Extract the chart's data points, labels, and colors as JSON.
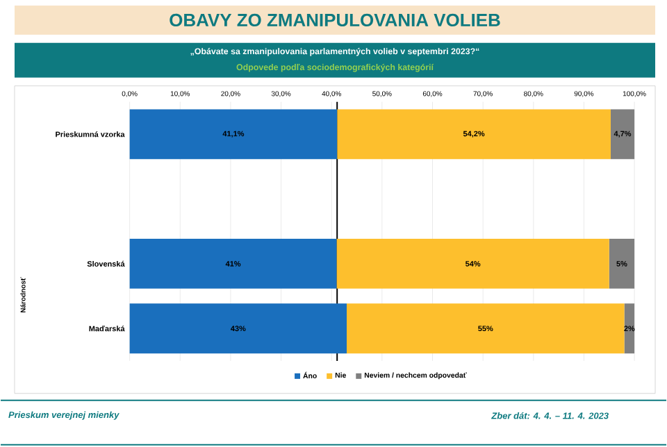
{
  "chart_data": {
    "type": "bar",
    "orientation": "horizontal",
    "stacked": true,
    "title": "OBAVY ZO ZMANIPULOVANIA VOLIEB",
    "subtitle": "„Obávate sa zmanipulovania parlamentných volieb v septembri 2023?“",
    "categories": [
      "Prieskumná vzorka",
      null,
      "Slovenská",
      "Maďarská"
    ],
    "series": [
      {
        "name": "Áno",
        "color": "#1a6fbd",
        "values": [
          41.1,
          null,
          41,
          43
        ],
        "value_labels": [
          "41,1%",
          null,
          "41%",
          "43%"
        ]
      },
      {
        "name": "Nie",
        "color": "#fdbf2d",
        "values": [
          54.2,
          null,
          54,
          55
        ],
        "value_labels": [
          "54,2%",
          null,
          "54%",
          "55%"
        ]
      },
      {
        "name": "Neviem / nechcem odpovedať",
        "color": "#7f7f7f",
        "values": [
          4.7,
          null,
          5,
          2
        ],
        "value_labels": [
          "4,7%",
          null,
          "5%",
          "2%"
        ]
      }
    ],
    "xlim": [
      0,
      100
    ],
    "xticks": [
      {
        "value": 0,
        "label": "0,0%"
      },
      {
        "value": 10,
        "label": "10,0%"
      },
      {
        "value": 20,
        "label": "20,0%"
      },
      {
        "value": 30,
        "label": "30,0%"
      },
      {
        "value": 40,
        "label": "40,0%"
      },
      {
        "value": 50,
        "label": "50,0%"
      },
      {
        "value": 60,
        "label": "60,0%"
      },
      {
        "value": 70,
        "label": "70,0%"
      },
      {
        "value": 80,
        "label": "80,0%"
      },
      {
        "value": 90,
        "label": "90,0%"
      },
      {
        "value": 100,
        "label": "100,0%"
      }
    ],
    "ref_lines": [
      {
        "axis": "x",
        "value": 41.1,
        "color": "#000000"
      }
    ],
    "grid": "x",
    "legend": "bottom",
    "annotations": [
      "Odpovede podľa sociodemografických kategórií",
      "Národnosť",
      "Prieskum verejnej mienky",
      "Zber dát: 4. 4. – 11. 4. 2023"
    ]
  }
}
